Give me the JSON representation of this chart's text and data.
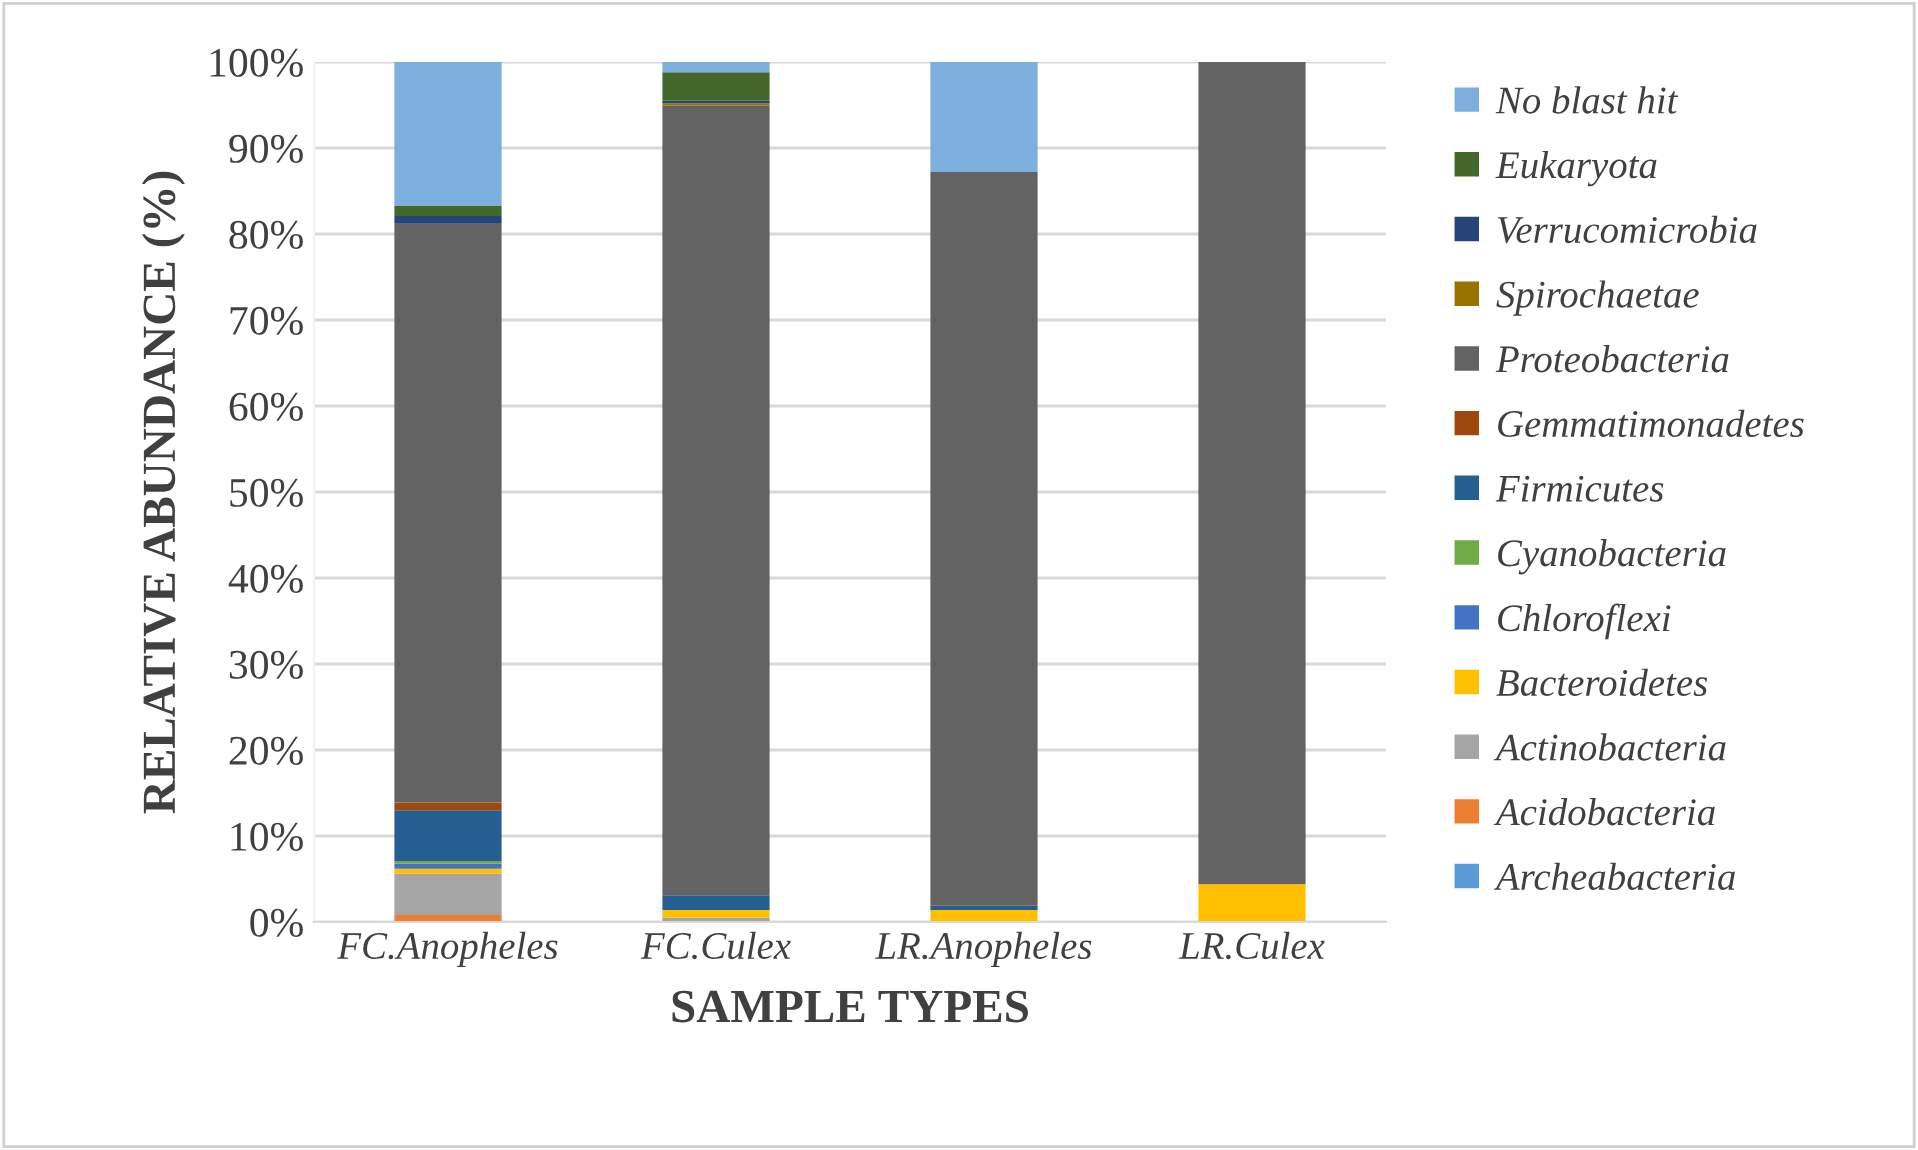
{
  "chart_data": {
    "type": "bar",
    "stacked": true,
    "xlabel": "SAMPLE TYPES",
    "ylabel": "RELATIVE ABUNDANCE (%)",
    "categories": [
      "FC.Anopheles",
      "FC.Culex",
      "LR.Anopheles",
      "LR.Culex"
    ],
    "ylim": [
      0,
      100
    ],
    "yticks": [
      {
        "value": 0,
        "label": "0%"
      },
      {
        "value": 10,
        "label": "10%"
      },
      {
        "value": 20,
        "label": "20%"
      },
      {
        "value": 30,
        "label": "30%"
      },
      {
        "value": 40,
        "label": "40%"
      },
      {
        "value": 50,
        "label": "50%"
      },
      {
        "value": 60,
        "label": "60%"
      },
      {
        "value": 70,
        "label": "70%"
      },
      {
        "value": 80,
        "label": "80%"
      },
      {
        "value": 90,
        "label": "90%"
      },
      {
        "value": 100,
        "label": "100%"
      }
    ],
    "grid": "y",
    "legend": "right",
    "series": [
      {
        "name": "Archeabacteria",
        "color": "#5b9bd5",
        "values": [
          0,
          0,
          0,
          0
        ]
      },
      {
        "name": "Acidobacteria",
        "color": "#ed7d31",
        "values": [
          0.8,
          0,
          0,
          0
        ]
      },
      {
        "name": "Actinobacteria",
        "color": "#a5a5a5",
        "values": [
          4.8,
          0.5,
          0,
          0
        ]
      },
      {
        "name": "Bacteroidetes",
        "color": "#ffc000",
        "values": [
          0.6,
          0.9,
          1.4,
          4.4
        ]
      },
      {
        "name": "Chloroflexi",
        "color": "#4472c4",
        "values": [
          0.6,
          0,
          0,
          0
        ]
      },
      {
        "name": "Cyanobacteria",
        "color": "#70ad47",
        "values": [
          0.3,
          0,
          0,
          0
        ]
      },
      {
        "name": "Firmicutes",
        "color": "#255e91",
        "values": [
          5.9,
          1.7,
          0.5,
          0
        ]
      },
      {
        "name": "Gemmatimonadetes",
        "color": "#9e480e",
        "values": [
          0.9,
          0,
          0,
          0
        ]
      },
      {
        "name": "Proteobacteria",
        "color": "#636363",
        "values": [
          67.3,
          91.8,
          85.3,
          95.6
        ]
      },
      {
        "name": "Spirochaetae",
        "color": "#997300",
        "values": [
          0,
          0.3,
          0,
          0
        ]
      },
      {
        "name": "Verrucomicrobia",
        "color": "#264478",
        "values": [
          0.9,
          0.3,
          0,
          0
        ]
      },
      {
        "name": "Eukaryota",
        "color": "#43682b",
        "values": [
          1.2,
          3.3,
          0,
          0
        ]
      },
      {
        "name": "No blast hit",
        "color": "#7cafdd",
        "values": [
          16.7,
          1.2,
          12.8,
          0
        ]
      }
    ]
  }
}
